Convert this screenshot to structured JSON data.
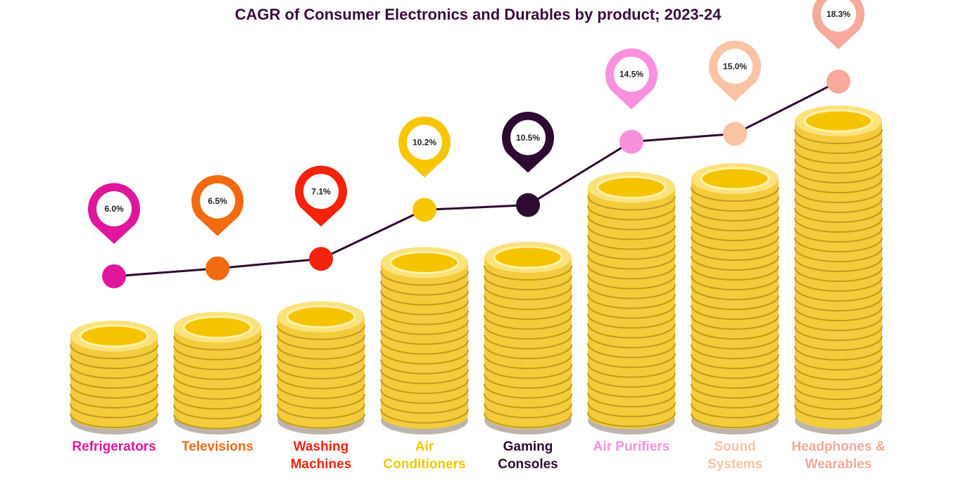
{
  "chart_data": {
    "type": "pictograph",
    "title": "CAGR of Consumer Electronics and Durables by product; 2023-24",
    "categories": [
      "Refrigerators",
      "Televisions",
      "Washing Machines",
      "Air Conditioners",
      "Gaming Consoles",
      "Air Purifiers",
      "Sound Systems",
      "Headphones & Wearables"
    ],
    "values": [
      6.0,
      6.5,
      7.1,
      10.2,
      10.5,
      14.5,
      15.0,
      18.3
    ],
    "value_labels": [
      "6.0%",
      "6.5%",
      "7.1%",
      "10.2%",
      "10.5%",
      "14.5%",
      "15.0%",
      "18.3%"
    ],
    "colors": [
      "#e0169c",
      "#f26b10",
      "#f5230c",
      "#f7c600",
      "#2d0a30",
      "#f990dd",
      "#f9c4a4",
      "#f7a99a"
    ],
    "line_color": "#2d0a2e"
  }
}
